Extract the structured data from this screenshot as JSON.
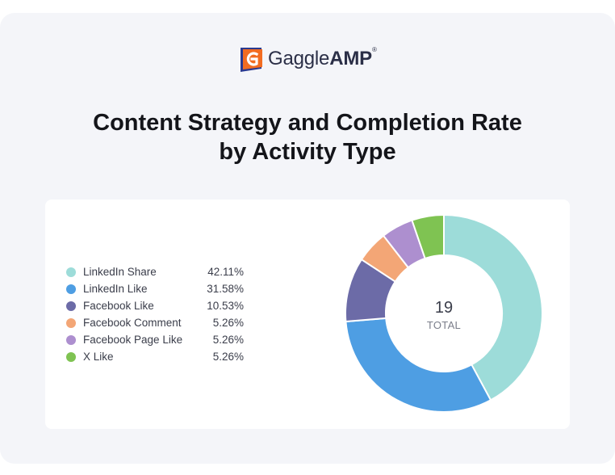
{
  "brand": {
    "name_regular": "Gaggle",
    "name_bold": "AMP",
    "mark": "®",
    "colors": {
      "orange": "#f26c21",
      "navy": "#2b3a8f"
    }
  },
  "title_lines": [
    "Content Strategy and Completion Rate",
    "by Activity Type"
  ],
  "chart_data": {
    "type": "pie",
    "donut": true,
    "center_value": "19",
    "center_label": "TOTAL",
    "legend_position": "left",
    "categories": [
      "LinkedIn Share",
      "LinkedIn Like",
      "Facebook Like",
      "Facebook Comment",
      "Facebook Page Like",
      "X Like"
    ],
    "values": [
      42.11,
      31.58,
      10.53,
      5.26,
      5.26,
      5.26
    ],
    "value_labels": [
      "42.11%",
      "31.58%",
      "10.53%",
      "5.26%",
      "5.26%",
      "5.26%"
    ],
    "colors": [
      "#9ddcd9",
      "#4e9ee3",
      "#6c6ba7",
      "#f3a676",
      "#ad8fcf",
      "#7fc352"
    ]
  }
}
